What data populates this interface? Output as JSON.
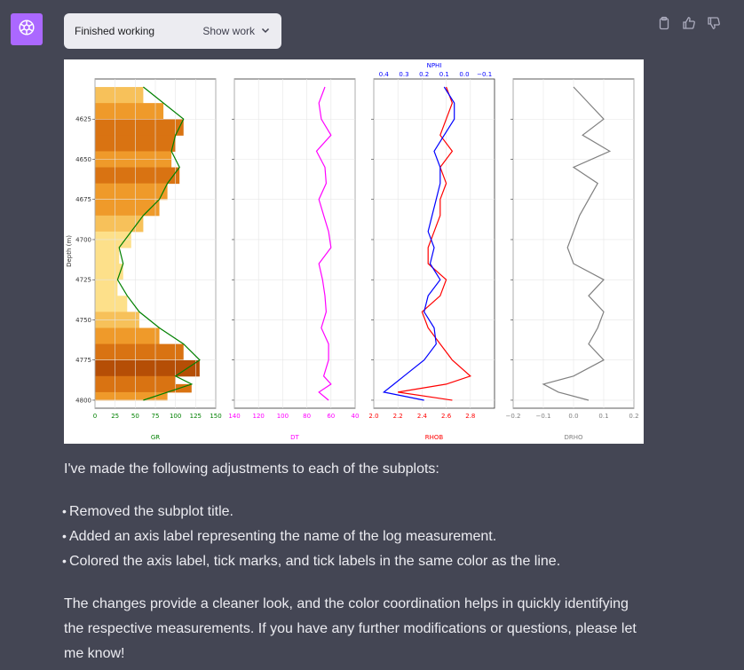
{
  "status": {
    "label": "Finished working",
    "show_work": "Show work"
  },
  "icons": {
    "avatar": "openai-logo-icon",
    "show_work": "chevron-down-icon",
    "copy": "clipboard-icon",
    "thumbs_up": "thumbs-up-icon",
    "thumbs_down": "thumbs-down-icon"
  },
  "colors": {
    "gr": "#008000",
    "dt": "#ff00ff",
    "rhob": "#ff0000",
    "nphi": "#0000ff",
    "drho": "#808080"
  },
  "chart_data": [
    {
      "type": "line",
      "ylabel": "Depth (m)",
      "xlabel": "GR",
      "xlim": [
        0,
        150
      ],
      "ylim": [
        4800,
        4600
      ],
      "x_ticks": [
        "0",
        "25",
        "50",
        "75",
        "100",
        "125",
        "150"
      ],
      "y_ticks": [
        "4625",
        "4650",
        "4675",
        "4700",
        "4725",
        "4750",
        "4775",
        "4800"
      ],
      "series": [
        {
          "name": "GR",
          "x": [
            60,
            85,
            110,
            100,
            95,
            105,
            90,
            80,
            60,
            45,
            30,
            35,
            28,
            40,
            55,
            80,
            110,
            130,
            100,
            120,
            90,
            60
          ]
        }
      ]
    },
    {
      "type": "line",
      "xlabel": "DT",
      "xlim": [
        140,
        40
      ],
      "x_ticks": [
        "140",
        "120",
        "100",
        "80",
        "60",
        "40"
      ],
      "series": [
        {
          "name": "DT",
          "x": [
            65,
            70,
            68,
            60,
            72,
            65,
            64,
            70,
            66,
            62,
            60,
            70,
            67,
            65,
            64,
            68,
            62,
            62,
            66,
            60,
            70,
            62
          ]
        }
      ]
    },
    {
      "type": "line",
      "xlabel": "RHOB",
      "x2label": "NPHI",
      "xlim": [
        2.0,
        3.0
      ],
      "x2lim": [
        0.45,
        -0.15
      ],
      "x_ticks": [
        "2.0",
        "2.2",
        "2.4",
        "2.6",
        "2.8"
      ],
      "x2_ticks": [
        "0.4",
        "0.3",
        "0.2",
        "0.1",
        "0.0",
        "−0.1"
      ],
      "series": [
        {
          "name": "RHOB",
          "x": [
            2.6,
            2.65,
            2.6,
            2.55,
            2.65,
            2.55,
            2.6,
            2.55,
            2.55,
            2.5,
            2.45,
            2.45,
            2.6,
            2.55,
            2.4,
            2.45,
            2.55,
            2.65,
            2.8,
            2.6,
            2.2,
            2.65
          ]
        },
        {
          "name": "NPHI",
          "x": [
            0.1,
            0.05,
            0.05,
            0.1,
            0.15,
            0.12,
            0.12,
            0.14,
            0.16,
            0.18,
            0.15,
            0.17,
            0.12,
            0.18,
            0.2,
            0.15,
            0.14,
            0.2,
            0.3,
            0.35,
            0.4,
            0.2
          ]
        }
      ]
    },
    {
      "type": "line",
      "xlabel": "DRHO",
      "xlim": [
        -0.2,
        0.2
      ],
      "x_ticks": [
        "−0.2",
        "−0.1",
        "0.0",
        "0.1",
        "0.2"
      ],
      "series": [
        {
          "name": "DRHO",
          "x": [
            0,
            0.05,
            0.1,
            0.03,
            0.12,
            0.0,
            0.08,
            0.05,
            0.02,
            0.0,
            -0.02,
            0.0,
            0.1,
            0.05,
            0.1,
            0.08,
            0.05,
            0.1,
            0.0,
            -0.1,
            -0.05,
            0.05
          ]
        }
      ]
    }
  ],
  "depths": [
    4605,
    4615,
    4625,
    4635,
    4645,
    4655,
    4665,
    4675,
    4685,
    4695,
    4705,
    4715,
    4725,
    4735,
    4745,
    4755,
    4765,
    4775,
    4785,
    4790,
    4795,
    4800
  ],
  "message": {
    "intro": "I've made the following adjustments to each of the subplots:",
    "bullets": [
      "Removed the subplot title.",
      "Added an axis label representing the name of the log measurement.",
      "Colored the axis label, tick marks, and tick labels in the same color as the line."
    ],
    "closing": "The changes provide a cleaner look, and the color coordination helps in quickly identifying the respective measurements. If you have any further modifications or questions, please let me know!"
  }
}
